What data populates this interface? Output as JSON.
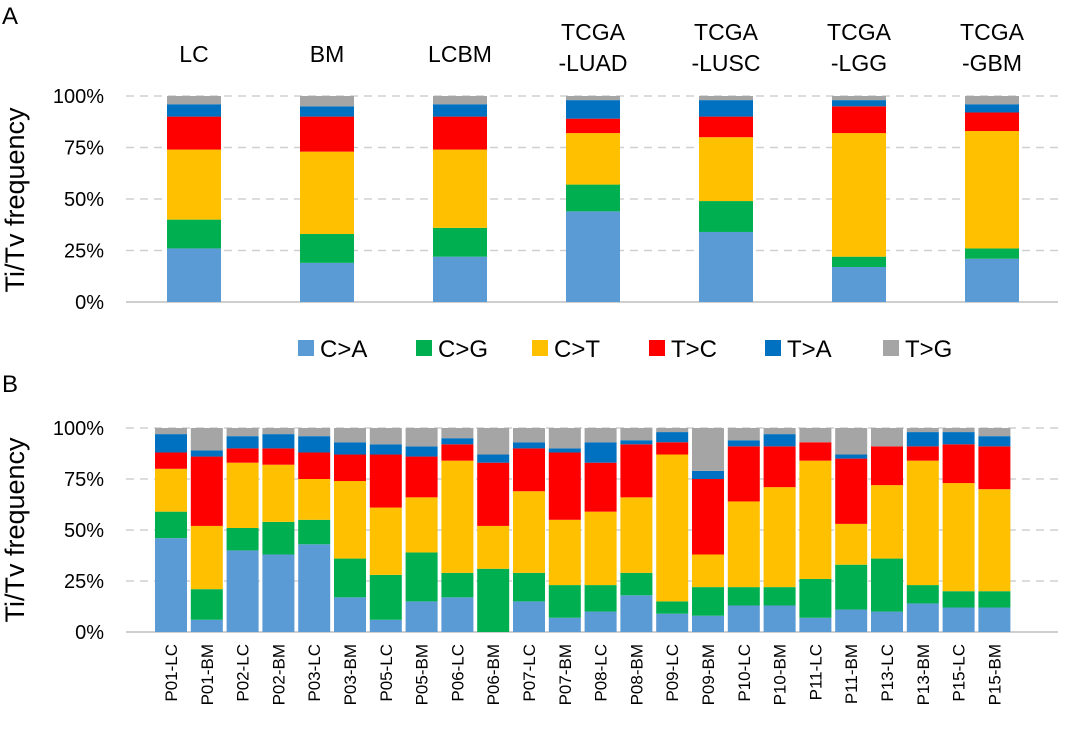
{
  "panels": [
    {
      "label": "A",
      "ylabel": "Ti/Tv frequency"
    },
    {
      "label": "B",
      "ylabel": "Ti/Tv frequency"
    }
  ],
  "legend": [
    {
      "name": "C>A",
      "color": "#5B9BD5"
    },
    {
      "name": "C>G",
      "color": "#00B050"
    },
    {
      "name": "C>T",
      "color": "#FFC000"
    },
    {
      "name": "T>C",
      "color": "#FF0000"
    },
    {
      "name": "T>A",
      "color": "#0070C0"
    },
    {
      "name": "T>G",
      "color": "#A5A5A5"
    }
  ],
  "chart_data": [
    {
      "type": "bar",
      "stacked": true,
      "panel": "A",
      "ylabel": "Ti/Tv frequency",
      "ylim": [
        0,
        100
      ],
      "yticks": [
        "0%",
        "25%",
        "50%",
        "75%",
        "100%"
      ],
      "grid": true,
      "categories": [
        [
          "LC"
        ],
        [
          "BM"
        ],
        [
          "LCBM"
        ],
        [
          "TCGA",
          "-LUAD"
        ],
        [
          "TCGA",
          "-LUSC"
        ],
        [
          "TCGA",
          "-LGG"
        ],
        [
          "TCGA",
          "-GBM"
        ]
      ],
      "series": [
        {
          "name": "C>A",
          "color": "#5B9BD5",
          "values": [
            26,
            19,
            22,
            44,
            34,
            17,
            21
          ]
        },
        {
          "name": "C>G",
          "color": "#00B050",
          "values": [
            14,
            14,
            14,
            13,
            15,
            5,
            5
          ]
        },
        {
          "name": "C>T",
          "color": "#FFC000",
          "values": [
            34,
            40,
            38,
            25,
            31,
            60,
            57
          ]
        },
        {
          "name": "T>C",
          "color": "#FF0000",
          "values": [
            16,
            17,
            16,
            7,
            10,
            13,
            9
          ]
        },
        {
          "name": "T>A",
          "color": "#0070C0",
          "values": [
            6,
            5,
            6,
            9,
            8,
            3,
            4
          ]
        },
        {
          "name": "T>G",
          "color": "#A5A5A5",
          "values": [
            4,
            5,
            4,
            2,
            2,
            2,
            4
          ]
        }
      ]
    },
    {
      "type": "bar",
      "stacked": true,
      "panel": "B",
      "ylabel": "Ti/Tv frequency",
      "ylim": [
        0,
        100
      ],
      "yticks": [
        "0%",
        "25%",
        "50%",
        "75%",
        "100%"
      ],
      "grid": true,
      "categories": [
        "P01-LC",
        "P01-BM",
        "P02-LC",
        "P02-BM",
        "P03-LC",
        "P03-BM",
        "P05-LC",
        "P05-BM",
        "P06-LC",
        "P06-BM",
        "P07-LC",
        "P07-BM",
        "P08-LC",
        "P08-BM",
        "P09-LC",
        "P09-BM",
        "P10-LC",
        "P10-BM",
        "P11-LC",
        "P11-BM",
        "P13-LC",
        "P13-BM",
        "P15-LC",
        "P15-BM"
      ],
      "series": [
        {
          "name": "C>A",
          "color": "#5B9BD5",
          "values": [
            46,
            6,
            40,
            38,
            43,
            17,
            6,
            15,
            17,
            0,
            15,
            7,
            10,
            18,
            9,
            8,
            13,
            13,
            7,
            11,
            10,
            14,
            12,
            12
          ]
        },
        {
          "name": "C>G",
          "color": "#00B050",
          "values": [
            13,
            15,
            11,
            16,
            12,
            19,
            22,
            24,
            12,
            31,
            14,
            16,
            13,
            11,
            6,
            14,
            9,
            9,
            19,
            22,
            26,
            9,
            8,
            8
          ]
        },
        {
          "name": "C>T",
          "color": "#FFC000",
          "values": [
            21,
            31,
            32,
            28,
            20,
            38,
            33,
            27,
            55,
            21,
            40,
            32,
            36,
            37,
            72,
            16,
            42,
            49,
            58,
            20,
            36,
            61,
            53,
            50
          ]
        },
        {
          "name": "T>C",
          "color": "#FF0000",
          "values": [
            8,
            34,
            7,
            8,
            13,
            13,
            26,
            20,
            8,
            31,
            21,
            33,
            24,
            26,
            6,
            37,
            27,
            20,
            9,
            32,
            19,
            7,
            19,
            21
          ]
        },
        {
          "name": "T>A",
          "color": "#0070C0",
          "values": [
            9,
            3,
            6,
            7,
            8,
            6,
            5,
            5,
            3,
            4,
            3,
            2,
            10,
            2,
            5,
            4,
            3,
            6,
            0,
            2,
            0,
            7,
            6,
            5
          ]
        },
        {
          "name": "T>G",
          "color": "#A5A5A5",
          "values": [
            3,
            11,
            4,
            3,
            4,
            7,
            8,
            9,
            5,
            13,
            7,
            10,
            7,
            6,
            2,
            21,
            6,
            3,
            7,
            13,
            9,
            2,
            2,
            4
          ]
        }
      ]
    }
  ]
}
